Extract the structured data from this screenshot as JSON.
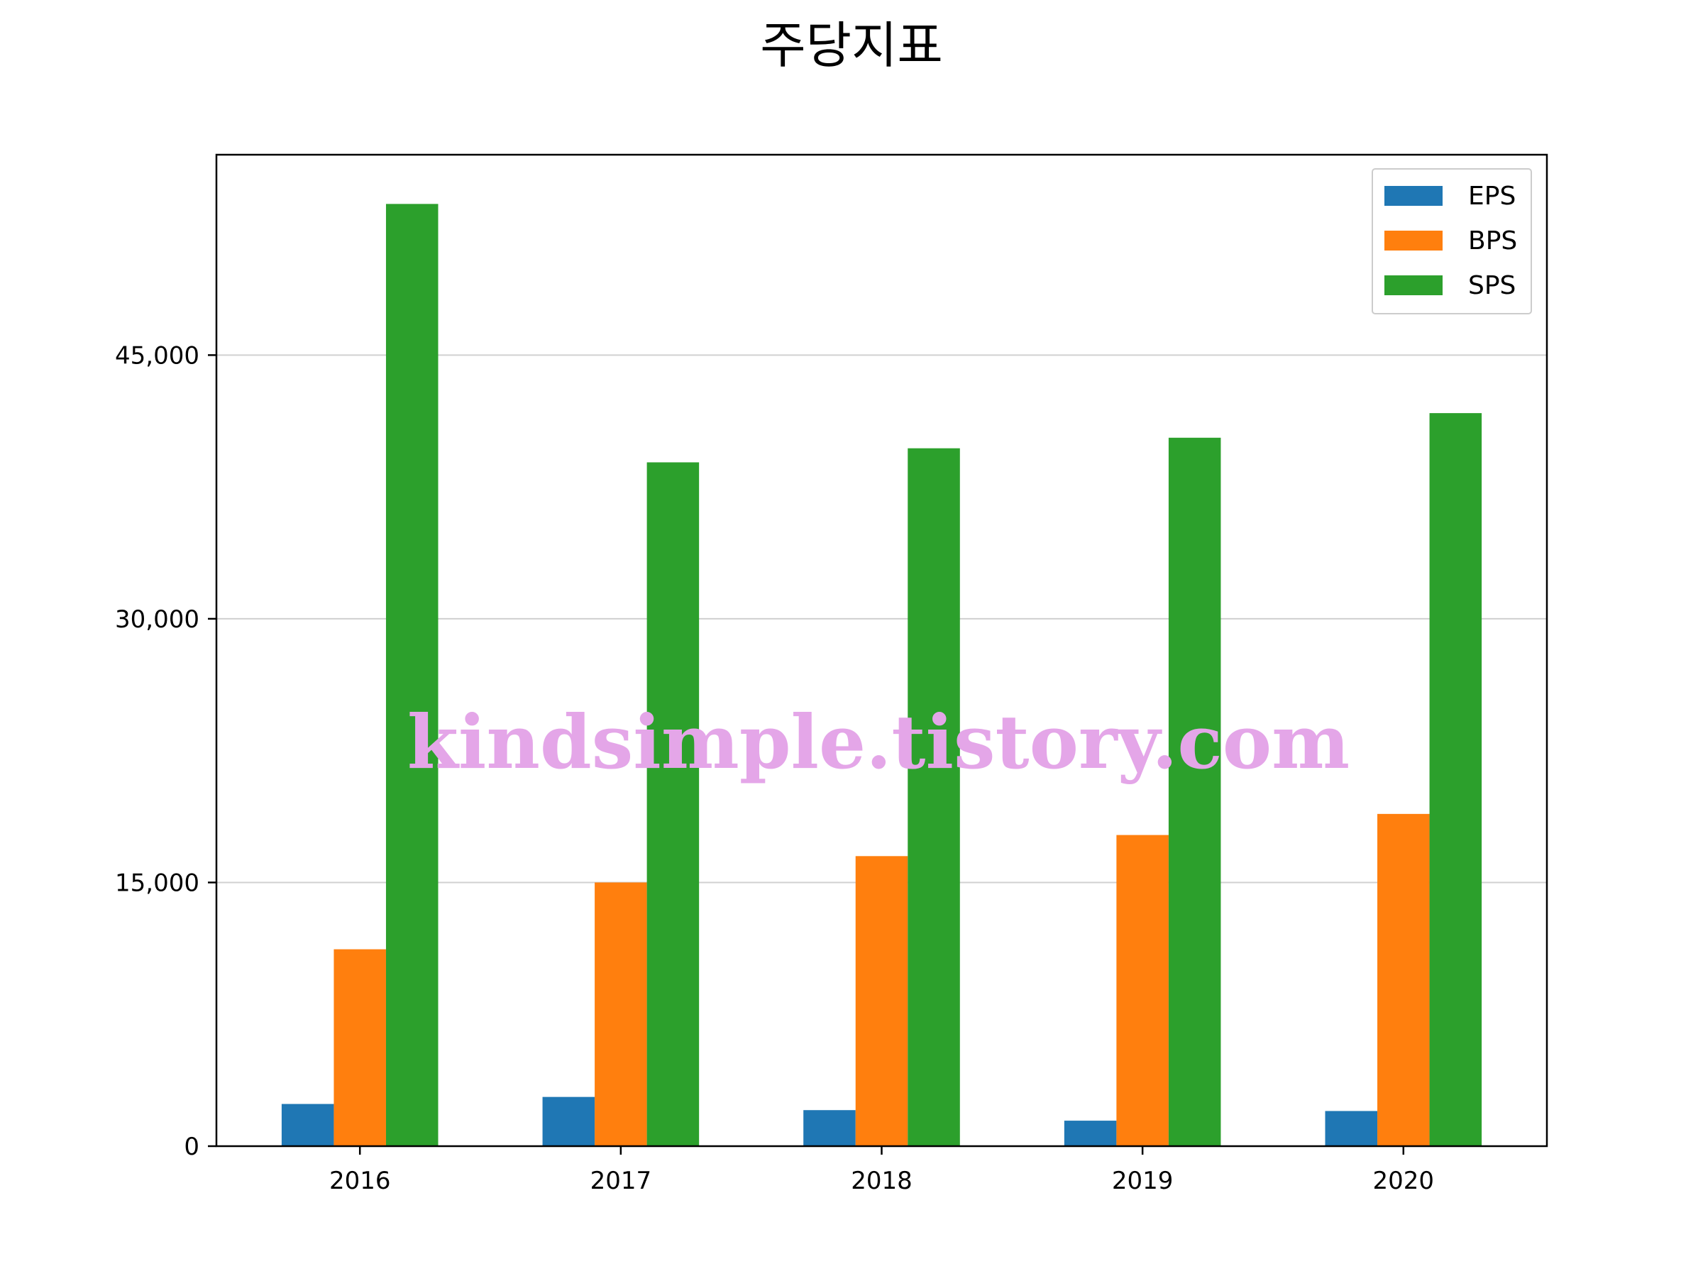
{
  "chart_data": {
    "type": "bar",
    "title": "주당지표",
    "xlabel": "",
    "ylabel": "",
    "categories": [
      "2016",
      "2017",
      "2018",
      "2019",
      "2020"
    ],
    "series": [
      {
        "name": "EPS",
        "color": "#1f77b4",
        "values": [
          2400,
          2800,
          2050,
          1450,
          2000
        ]
      },
      {
        "name": "BPS",
        "color": "#ff7f0e",
        "values": [
          11200,
          15000,
          16500,
          17700,
          18900
        ]
      },
      {
        "name": "SPS",
        "color": "#2ca02c",
        "values": [
          53600,
          38900,
          39700,
          40300,
          41700
        ]
      }
    ],
    "ylim": [
      0,
      56400
    ],
    "yticks": [
      0,
      15000,
      30000,
      45000
    ],
    "ytick_labels": [
      "0",
      "15,000",
      "30,000",
      "45,000"
    ],
    "grid": "horizontal",
    "legend_position": "top-right",
    "watermark": "kindsimple.tistory.com",
    "watermark_color": "#e4a6e8"
  }
}
